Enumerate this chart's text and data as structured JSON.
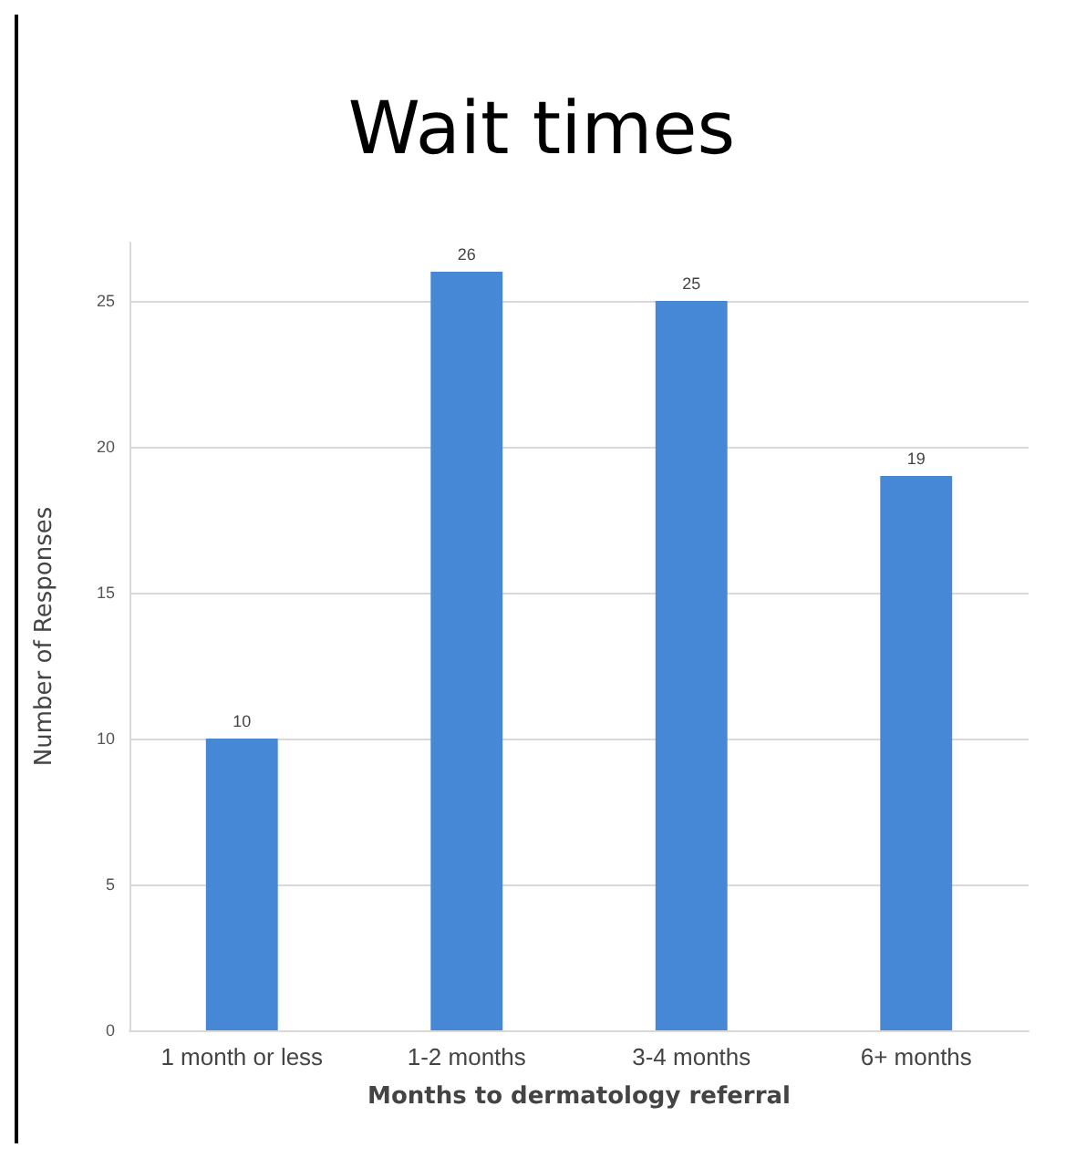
{
  "chart_data": {
    "type": "bar",
    "title": "Wait times",
    "xlabel": "Months to dermatology referral",
    "ylabel": "Number of Responses",
    "categories": [
      "1 month or less",
      "1-2 months",
      "3-4 months",
      "6+ months"
    ],
    "values": [
      10,
      26,
      25,
      19
    ],
    "color": "#4688d6",
    "ylim": [
      0,
      27
    ],
    "yticks": [
      0,
      5,
      10,
      15,
      20,
      25
    ],
    "grid": "y",
    "data_labels": true
  }
}
